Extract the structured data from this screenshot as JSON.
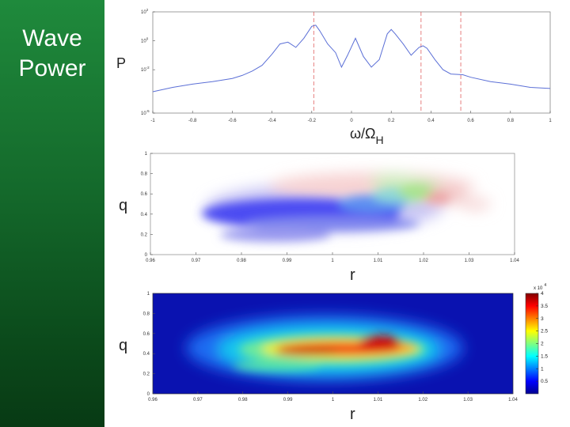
{
  "slide": {
    "title_line1": "Wave",
    "title_line2": "Power"
  },
  "colors": {
    "sidebar_top": "#1f8a3c",
    "sidebar_bottom": "#083a14",
    "spectrum_line": "#5b6fd6",
    "marker_line": "#e06060"
  },
  "chart_data": [
    {
      "type": "line",
      "ylabel": "P",
      "xlabel_main": "ω/Ω",
      "xlabel_sub": "H",
      "xlim": [
        -1,
        1
      ],
      "yscale": "log",
      "ylim": [
        1e-05,
        100
      ],
      "xticks": [
        "-1",
        "-0.8",
        "-0.6",
        "-0.4",
        "-0.2",
        "0",
        "0.2",
        "0.4",
        "0.6",
        "0.8",
        "1"
      ],
      "yticks": [
        {
          "base": "10",
          "exp": "2",
          "value": 100
        },
        {
          "base": "10",
          "exp": "0",
          "value": 1
        },
        {
          "base": "10",
          "exp": "-2",
          "value": 0.01
        },
        {
          "base": "10",
          "exp": "-5",
          "value": 1e-05
        }
      ],
      "x": [
        -1,
        -0.9,
        -0.8,
        -0.7,
        -0.6,
        -0.55,
        -0.5,
        -0.45,
        -0.4,
        -0.36,
        -0.32,
        -0.28,
        -0.24,
        -0.2,
        -0.18,
        -0.16,
        -0.12,
        -0.08,
        -0.05,
        -0.02,
        0.02,
        0.06,
        0.1,
        0.14,
        0.18,
        0.2,
        0.22,
        0.26,
        0.3,
        0.34,
        0.36,
        0.38,
        0.42,
        0.46,
        0.5,
        0.56,
        0.6,
        0.7,
        0.8,
        0.9,
        1
      ],
      "y": [
        0.0003,
        0.0006,
        0.001,
        0.0015,
        0.0025,
        0.004,
        0.008,
        0.02,
        0.12,
        0.6,
        0.8,
        0.35,
        1.5,
        10,
        12,
        5,
        0.6,
        0.15,
        0.015,
        0.1,
        1.5,
        0.08,
        0.015,
        0.05,
        3,
        6,
        3,
        0.6,
        0.1,
        0.35,
        0.45,
        0.3,
        0.05,
        0.01,
        0.005,
        0.0045,
        0.003,
        0.0015,
        0.001,
        0.0006,
        0.0005
      ],
      "markers": [
        -0.19,
        0.35,
        0.55
      ]
    },
    {
      "type": "heatmap",
      "ylabel": "q",
      "xlabel": "r",
      "xlim": [
        0.96,
        1.04
      ],
      "ylim": [
        0,
        1
      ],
      "xticks": [
        "0.96",
        "0.97",
        "0.98",
        "0.99",
        "1",
        "1.01",
        "1.02",
        "1.03",
        "1.04"
      ],
      "yticks": [
        "0",
        "0.2",
        "0.4",
        "0.6",
        "0.8",
        "1"
      ],
      "colors": [
        "#3030ff",
        "#5a7cf0",
        "#7ad6d0",
        "#a8e88a",
        "#f07a78"
      ]
    },
    {
      "type": "heatmap",
      "ylabel": "q",
      "xlabel": "r",
      "xlim": [
        0.96,
        1.04
      ],
      "ylim": [
        0,
        1
      ],
      "xticks": [
        "0.96",
        "0.97",
        "0.98",
        "0.99",
        "1",
        "1.01",
        "1.02",
        "1.03",
        "1.04"
      ],
      "yticks": [
        "0",
        "0.2",
        "0.4",
        "0.6",
        "0.8",
        "1"
      ],
      "colorbar": {
        "multiplier_label": "x 10",
        "multiplier_exp": "4",
        "ticks": [
          "4",
          "3.5",
          "3",
          "2.5",
          "2",
          "1.5",
          "1",
          "0.5"
        ],
        "range": [
          0,
          4
        ]
      }
    }
  ]
}
